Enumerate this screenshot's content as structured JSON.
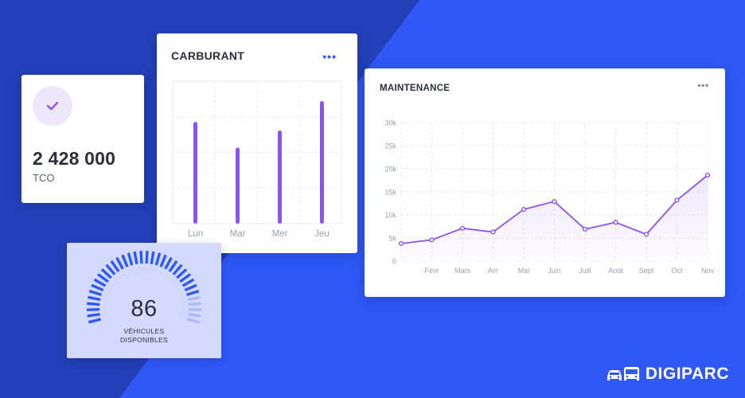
{
  "colors": {
    "background_light": "#2f58f5",
    "background_dark": "#2340b8",
    "accent_purple": "#8c52f2",
    "gauge_blue": "#2f58f5"
  },
  "tco": {
    "icon": "check-icon",
    "value": "2 428 000",
    "label": "TCO"
  },
  "fuel": {
    "title": "CARBURANT",
    "menu_icon": "more-dots-icon",
    "chart_data": {
      "type": "bar",
      "categories": [
        "Lun",
        "Mar",
        "Mer",
        "Jeu"
      ],
      "values": [
        0.83,
        0.62,
        0.76,
        1.0
      ],
      "title": "CARBURANT"
    }
  },
  "maintenance": {
    "title": "MAINTENANCE",
    "menu_icon": "more-dots-icon",
    "chart_data": {
      "type": "area",
      "categories": [
        "",
        "Févr",
        "Mars",
        "Avr",
        "Mai",
        "Juin",
        "Juill",
        "Août",
        "Sept",
        "Oct",
        "Nov"
      ],
      "values": [
        3800,
        4600,
        7100,
        6300,
        11200,
        12900,
        6900,
        8400,
        5800,
        13200,
        18600
      ],
      "y_ticks": [
        "0",
        "5k",
        "10k",
        "15k",
        "20k",
        "25k",
        "30k"
      ],
      "ylim": [
        0,
        30000
      ],
      "title": "MAINTENANCE",
      "grid": true
    }
  },
  "gauge": {
    "value": "86",
    "label_line1": "VÉHICULES",
    "label_line2": "DISPONIBLES",
    "level": 0.86
  },
  "brand": {
    "name": "DIGIPARC",
    "icon": "vehicles-icon"
  }
}
